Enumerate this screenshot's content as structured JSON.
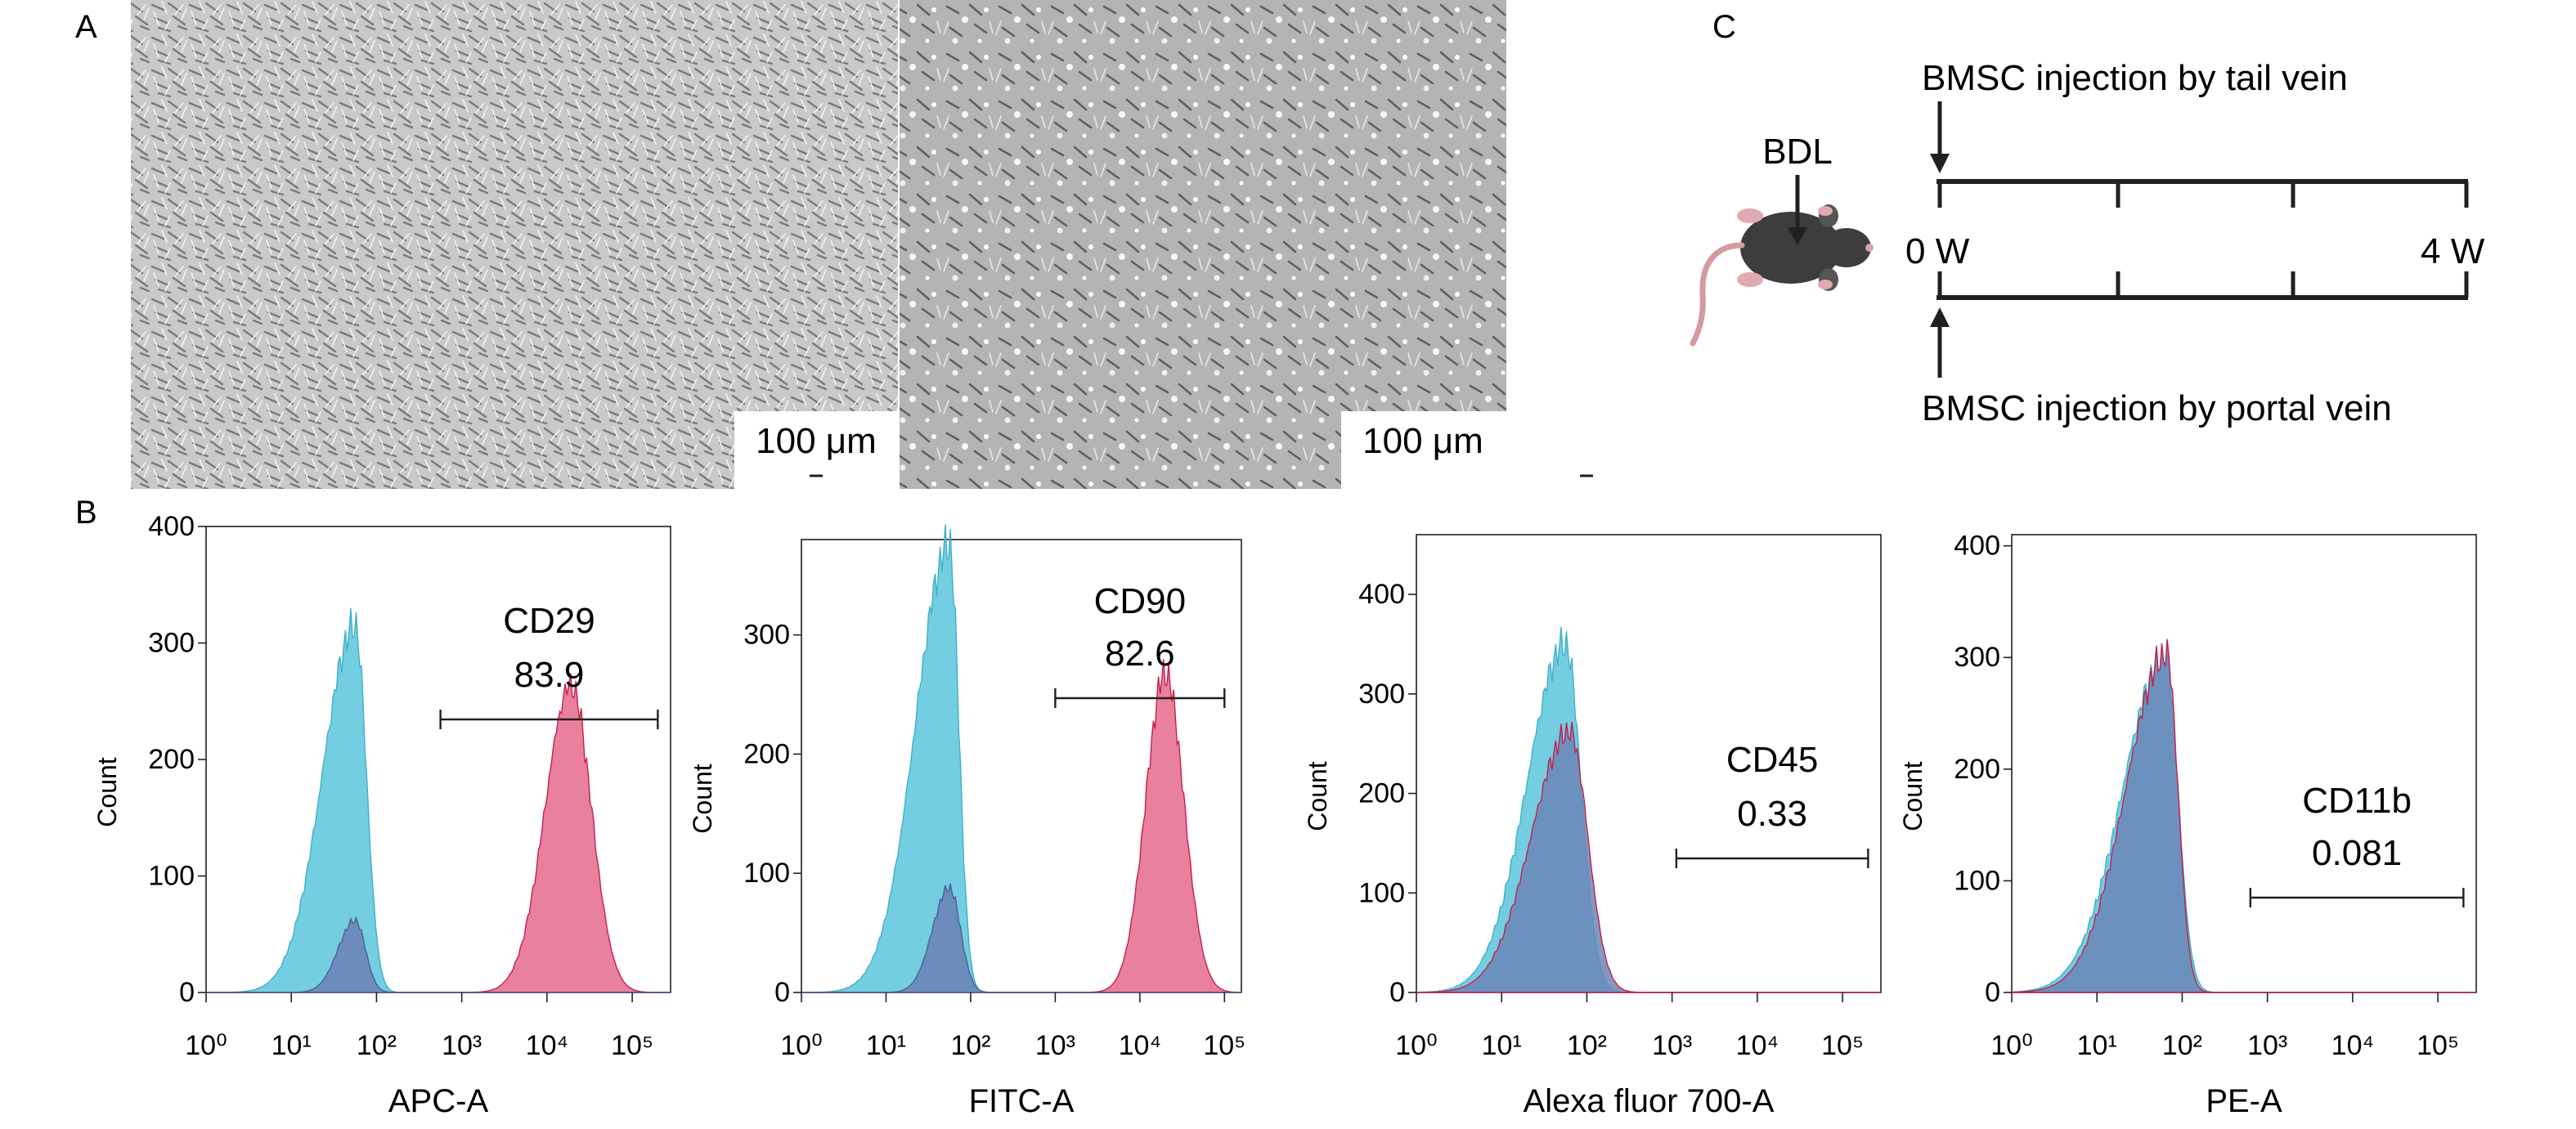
{
  "figure": {
    "panel_labels": {
      "A": "A",
      "B": "B",
      "C": "C"
    },
    "micrographs": [
      {
        "scale_bar": "100 μm",
        "appearance": "dense-spindle"
      },
      {
        "scale_bar": "100 μm",
        "appearance": "sparse-mixed"
      }
    ],
    "timeline": {
      "model_label": "BDL",
      "start_label": "0 W",
      "end_label": "4 W",
      "top_label": "BMSC injection by tail vein",
      "bottom_label": "BMSC injection by portal vein",
      "mouse_icon": "mouse-icon"
    },
    "colors": {
      "control": "#5bc5dc",
      "stained": "#e0557e",
      "overlap": "#6b86b8",
      "axis": "#231f20"
    }
  },
  "chart_data": [
    {
      "type": "area",
      "panel": "CD29",
      "marker": "CD29",
      "gate_value": "83.9",
      "gate_range_log": [
        2.75,
        5.3
      ],
      "xlabel": "APC-A",
      "ylabel": "Count",
      "x_scale": "log",
      "xlim_log": [
        0,
        5.45
      ],
      "ylim": [
        0,
        400
      ],
      "yticks": [
        0,
        100,
        200,
        300,
        400
      ],
      "xtick_exponents": [
        0,
        1,
        2,
        3,
        4,
        5
      ],
      "series": [
        {
          "role": "control",
          "peak_log": 1.75,
          "peak": 315,
          "width_left": 0.38,
          "width_right": 0.13
        },
        {
          "role": "stained",
          "peak_log": 4.28,
          "peak": 264,
          "width_left": 0.3,
          "width_right": 0.24
        },
        {
          "role": "stained-low",
          "peak_log": 1.75,
          "peak": 62,
          "width_left": 0.2,
          "width_right": 0.12
        }
      ]
    },
    {
      "type": "area",
      "panel": "CD90",
      "marker": "CD90",
      "gate_value": "82.6",
      "gate_range_log": [
        3.0,
        5.0
      ],
      "xlabel": "FITC-A",
      "ylabel": "Count",
      "x_scale": "log",
      "xlim_log": [
        0,
        5.2
      ],
      "ylim": [
        0,
        380
      ],
      "yticks": [
        0,
        100,
        200,
        300
      ],
      "xtick_exponents": [
        0,
        1,
        2,
        3,
        4,
        5
      ],
      "series": [
        {
          "role": "control",
          "peak_log": 1.75,
          "peak": 375,
          "width_left": 0.4,
          "width_right": 0.11
        },
        {
          "role": "stained",
          "peak_log": 4.3,
          "peak": 268,
          "width_left": 0.23,
          "width_right": 0.22
        },
        {
          "role": "stained-low",
          "peak_log": 1.75,
          "peak": 88,
          "width_left": 0.2,
          "width_right": 0.13
        }
      ]
    },
    {
      "type": "area",
      "panel": "CD45",
      "marker": "CD45",
      "gate_value": "0.33",
      "gate_range_log": [
        3.05,
        5.3
      ],
      "xlabel": "Alexa fluor 700-A",
      "ylabel": "Count",
      "x_scale": "log",
      "xlim_log": [
        0,
        5.45
      ],
      "ylim": [
        0,
        460
      ],
      "yticks": [
        0,
        100,
        200,
        300,
        400
      ],
      "xtick_exponents": [
        0,
        1,
        2,
        3,
        4,
        5
      ],
      "series": [
        {
          "role": "control",
          "peak_log": 1.75,
          "peak": 350,
          "width_left": 0.45,
          "width_right": 0.18
        },
        {
          "role": "stained",
          "peak_log": 1.8,
          "peak": 262,
          "width_left": 0.45,
          "width_right": 0.21
        }
      ]
    },
    {
      "type": "area",
      "panel": "CD11b",
      "marker": "CD11b",
      "gate_value": "0.081",
      "gate_range_log": [
        2.8,
        5.3
      ],
      "xlabel": "PE-A",
      "ylabel": "Count",
      "x_scale": "log",
      "xlim_log": [
        0,
        5.45
      ],
      "ylim": [
        0,
        410
      ],
      "yticks": [
        0,
        100,
        200,
        300,
        400
      ],
      "xtick_exponents": [
        0,
        1,
        2,
        3,
        4,
        5
      ],
      "series": [
        {
          "role": "control",
          "peak_log": 1.8,
          "peak": 300,
          "width_left": 0.5,
          "width_right": 0.15
        },
        {
          "role": "stained",
          "peak_log": 1.82,
          "peak": 303,
          "width_left": 0.48,
          "width_right": 0.13
        }
      ]
    }
  ]
}
